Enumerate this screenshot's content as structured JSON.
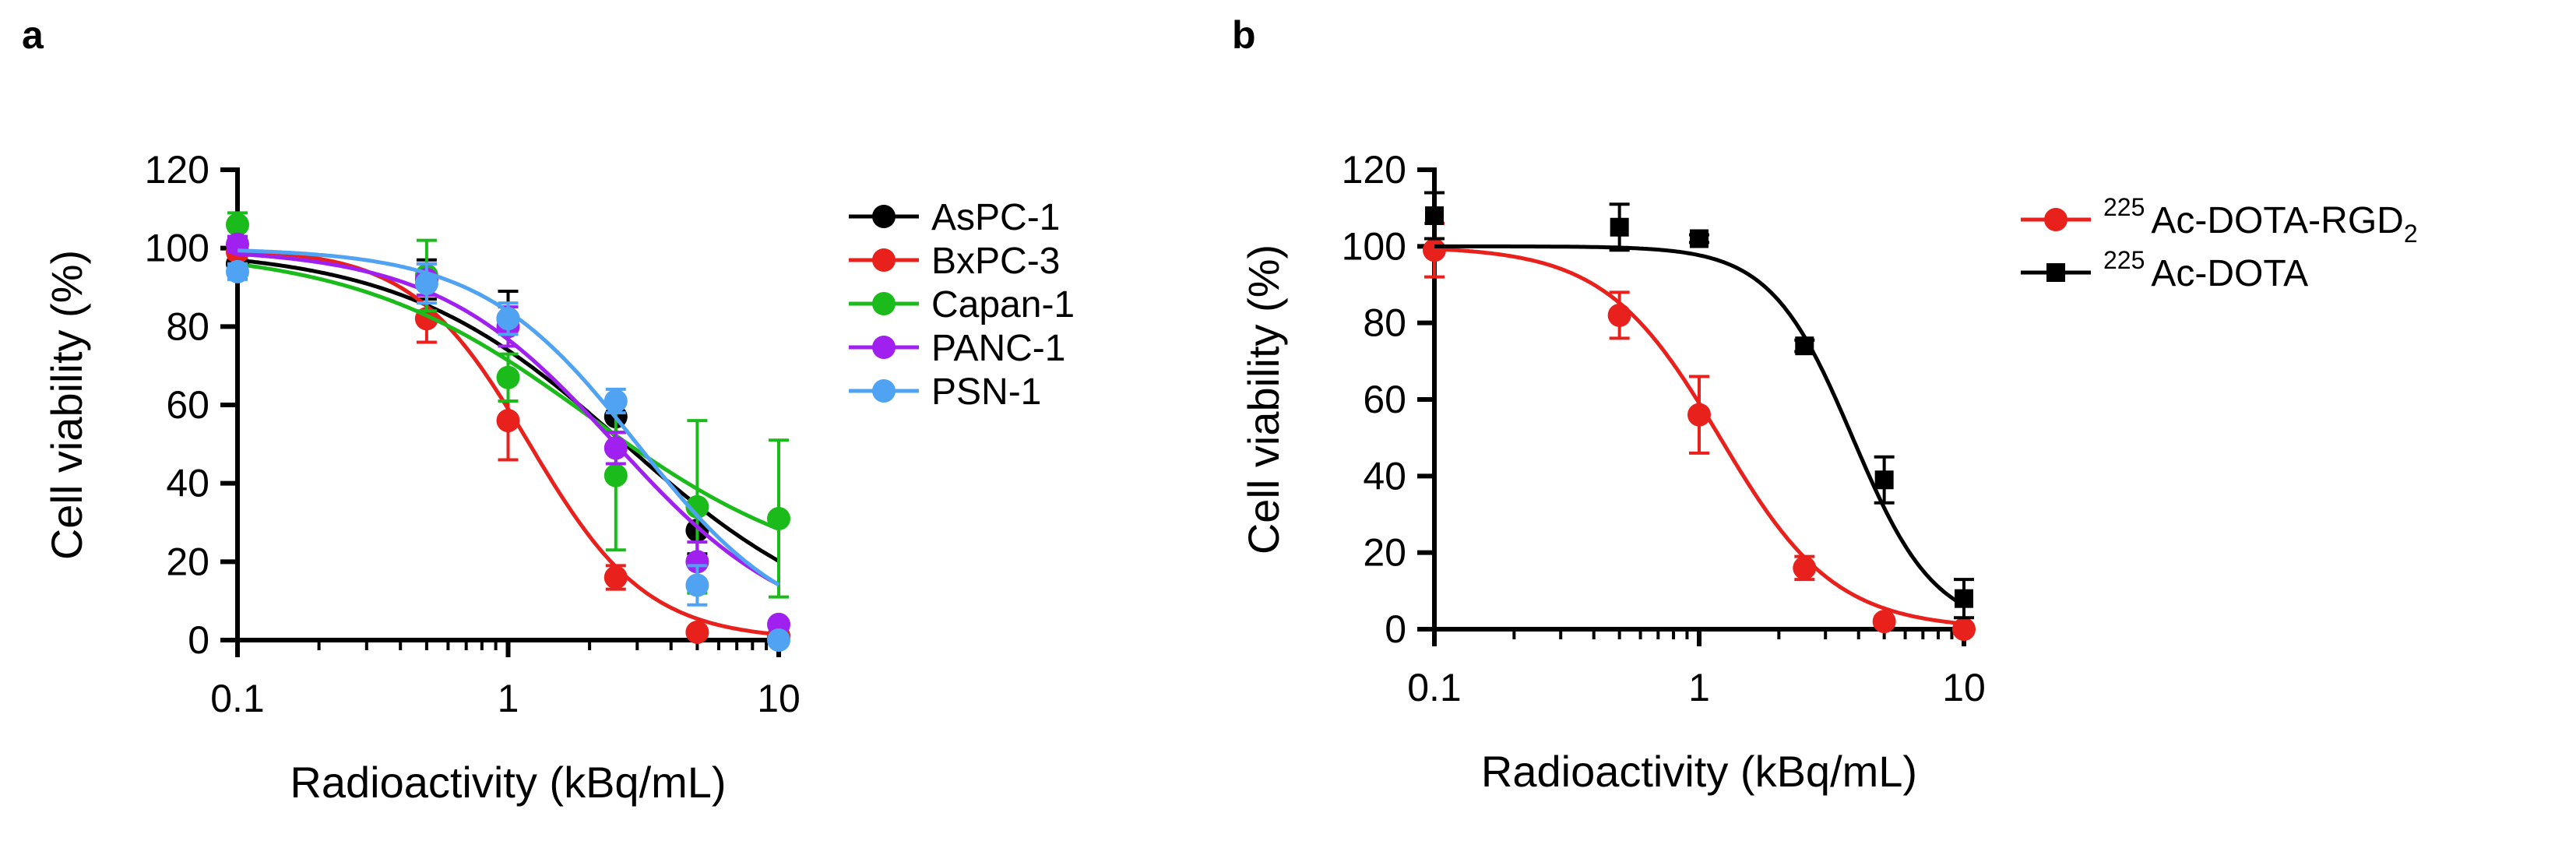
{
  "chart_data": [
    {
      "panel_label": "a",
      "type": "line",
      "xscale": "log",
      "xlabel": "Radioactivity (kBq/mL)",
      "ylabel": "Cell viability (%)",
      "xlim": [
        0.1,
        10
      ],
      "ylim": [
        0,
        120
      ],
      "xticks": [
        0.1,
        1,
        10
      ],
      "xtick_labels": [
        "0.1",
        "1",
        "10"
      ],
      "yticks": [
        0,
        20,
        40,
        60,
        80,
        100,
        120
      ],
      "ytick_labels": [
        "0",
        "20",
        "40",
        "60",
        "80",
        "100",
        "120"
      ],
      "legend_position": "right",
      "series": [
        {
          "name": "AsPC-1",
          "color": "#000000",
          "marker": "circle",
          "x": [
            0.1,
            0.5,
            1,
            2.5,
            5,
            10
          ],
          "y": [
            96,
            92,
            82,
            57,
            28,
            1
          ],
          "err": [
            3,
            5,
            7,
            4,
            6,
            2
          ],
          "fit": {
            "top": 100,
            "bottom": 0,
            "ec50": 2.7,
            "hill": 1.05
          }
        },
        {
          "name": "BxPC-3",
          "color": "#e8211d",
          "marker": "circle",
          "x": [
            0.1,
            0.5,
            1,
            2.5,
            5,
            10
          ],
          "y": [
            99,
            82,
            56,
            16,
            2,
            1
          ],
          "err": [
            1.5,
            6,
            10,
            3,
            0.5,
            0.5
          ],
          "fit": {
            "top": 100,
            "bottom": 0,
            "ec50": 1.2,
            "hill": 2.0
          }
        },
        {
          "name": "Capan-1",
          "color": "#1cbb1c",
          "marker": "circle",
          "x": [
            0.1,
            0.5,
            1,
            2.5,
            5,
            10
          ],
          "y": [
            106,
            93,
            67,
            42,
            34,
            31
          ],
          "err": [
            3,
            9,
            6,
            19,
            22,
            20
          ],
          "fit": {
            "top": 100,
            "bottom": 14,
            "ec50": 2.0,
            "hill": 1.0
          }
        },
        {
          "name": "PANC-1",
          "color": "#a020f0",
          "marker": "circle",
          "x": [
            0.1,
            0.5,
            1,
            2.5,
            5,
            10
          ],
          "y": [
            101,
            92,
            80,
            49,
            20,
            4
          ],
          "err": [
            2,
            4,
            5,
            4,
            5,
            1
          ],
          "fit": {
            "top": 100,
            "bottom": 0,
            "ec50": 2.5,
            "hill": 1.3
          }
        },
        {
          "name": "PSN-1",
          "color": "#4fa3f2",
          "marker": "circle",
          "x": [
            0.1,
            0.5,
            1,
            2.5,
            5,
            10
          ],
          "y": [
            94,
            91,
            82,
            61,
            14,
            0
          ],
          "err": [
            2,
            5,
            4,
            3,
            5,
            1
          ],
          "fit": {
            "top": 100,
            "bottom": 0,
            "ec50": 3.0,
            "hill": 1.5
          }
        }
      ]
    },
    {
      "panel_label": "b",
      "type": "line",
      "xscale": "log",
      "xlabel": "Radioactivity (kBq/mL)",
      "ylabel": "Cell viability (%)",
      "xlim": [
        0.1,
        10
      ],
      "ylim": [
        0,
        120
      ],
      "xticks": [
        0.1,
        1,
        10
      ],
      "xtick_labels": [
        "0.1",
        "1",
        "10"
      ],
      "yticks": [
        0,
        20,
        40,
        60,
        80,
        100,
        120
      ],
      "ytick_labels": [
        "0",
        "20",
        "40",
        "60",
        "80",
        "100",
        "120"
      ],
      "legend_position": "right",
      "series": [
        {
          "name": "Ac-DOTA-RGD",
          "sup": "225",
          "sub": "2",
          "color": "#e8211d",
          "marker": "circle",
          "x": [
            0.1,
            0.5,
            1,
            2.5,
            5,
            10
          ],
          "y": [
            99,
            82,
            56,
            16,
            2,
            0
          ],
          "err": [
            7,
            6,
            10,
            3,
            0.5,
            0.5
          ],
          "fit": {
            "top": 100,
            "bottom": 0,
            "ec50": 1.2,
            "hill": 2.0
          }
        },
        {
          "name": "Ac-DOTA",
          "sup": "225",
          "sub": "",
          "color": "#000000",
          "marker": "square",
          "x": [
            0.1,
            0.5,
            1,
            2.5,
            5,
            10
          ],
          "y": [
            108,
            105,
            102,
            74,
            39,
            8
          ],
          "err": [
            6,
            6,
            1,
            1.5,
            6,
            5
          ],
          "fit": {
            "top": 100,
            "bottom": 0,
            "ec50": 3.8,
            "hill": 2.8
          }
        }
      ]
    }
  ]
}
